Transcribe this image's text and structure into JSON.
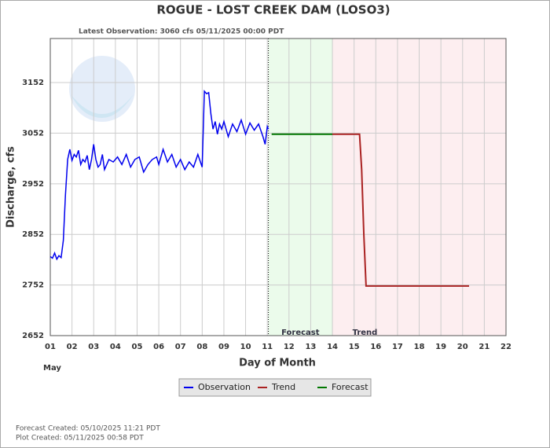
{
  "chart_data": {
    "type": "line",
    "title": "ROGUE - LOST CREEK DAM  (LOSO3)",
    "subtitle": "Latest Observation: 3060 cfs 05/11/2025 00:00 PDT",
    "y_label": "Discharge, cfs",
    "x_label": "Day of Month",
    "month_label": "May",
    "footer": [
      "Forecast Created: 05/10/2025 11:21 PDT",
      "Plot Created: 05/11/2025 00:58 PDT"
    ],
    "xlim": [
      1,
      22
    ],
    "ylim": [
      2652,
      3239
    ],
    "xticks": [
      {
        "value": 1,
        "label": "01"
      },
      {
        "value": 2,
        "label": "02"
      },
      {
        "value": 3,
        "label": "03"
      },
      {
        "value": 4,
        "label": "04"
      },
      {
        "value": 5,
        "label": "05"
      },
      {
        "value": 6,
        "label": "06"
      },
      {
        "value": 7,
        "label": "07"
      },
      {
        "value": 8,
        "label": "08"
      },
      {
        "value": 9,
        "label": "09"
      },
      10,
      11,
      12,
      13,
      14,
      15,
      16,
      17,
      18,
      19,
      20,
      21,
      22
    ],
    "yticks": [
      2652,
      2752,
      2852,
      2952,
      3052,
      3152
    ],
    "grid": true,
    "legend": "bottom",
    "regions": [
      {
        "name": "Forecast",
        "start": 11.05,
        "end": 14,
        "color": "#ebfbeb"
      },
      {
        "name": "Trend",
        "start": 14,
        "end": 22,
        "color": "#fdeef0"
      }
    ],
    "series": [
      {
        "name": "Observation",
        "color": "#0000ee",
        "x": [
          1.0,
          1.1,
          1.2,
          1.3,
          1.4,
          1.5,
          1.6,
          1.7,
          1.8,
          1.9,
          2.0,
          2.1,
          2.2,
          2.3,
          2.4,
          2.5,
          2.6,
          2.7,
          2.8,
          2.9,
          3.0,
          3.1,
          3.2,
          3.3,
          3.4,
          3.5,
          3.7,
          3.9,
          4.1,
          4.3,
          4.5,
          4.7,
          4.9,
          5.1,
          5.3,
          5.5,
          5.7,
          5.9,
          6.0,
          6.2,
          6.4,
          6.6,
          6.8,
          7.0,
          7.2,
          7.4,
          7.6,
          7.8,
          8.0,
          8.05,
          8.1,
          8.2,
          8.3,
          8.4,
          8.5,
          8.6,
          8.7,
          8.8,
          8.9,
          9.0,
          9.2,
          9.4,
          9.6,
          9.8,
          10.0,
          10.2,
          10.4,
          10.6,
          10.8,
          10.9,
          11.0,
          11.05
        ],
        "values": [
          2808,
          2805,
          2815,
          2803,
          2810,
          2806,
          2840,
          2930,
          3000,
          3020,
          2998,
          3010,
          3005,
          3018,
          2990,
          3000,
          2995,
          3008,
          2980,
          3000,
          3030,
          3000,
          2985,
          2990,
          3010,
          2980,
          3000,
          2995,
          3005,
          2990,
          3010,
          2985,
          3000,
          3005,
          2975,
          2990,
          3000,
          3005,
          2990,
          3020,
          2995,
          3010,
          2985,
          3000,
          2980,
          2995,
          2985,
          3010,
          2985,
          3060,
          3135,
          3130,
          3132,
          3090,
          3060,
          3075,
          3050,
          3070,
          3060,
          3075,
          3045,
          3070,
          3055,
          3078,
          3050,
          3072,
          3058,
          3070,
          3045,
          3030,
          3065,
          3060
        ]
      },
      {
        "name": "Trend",
        "color": "#aa2222",
        "x": [
          14,
          15.25,
          15.35,
          15.45,
          15.55,
          20.3
        ],
        "values": [
          3050,
          3050,
          2980,
          2850,
          2750,
          2750
        ]
      },
      {
        "name": "Forecast",
        "color": "#007700",
        "x": [
          11.2,
          14
        ],
        "values": [
          3050,
          3050
        ]
      }
    ]
  }
}
